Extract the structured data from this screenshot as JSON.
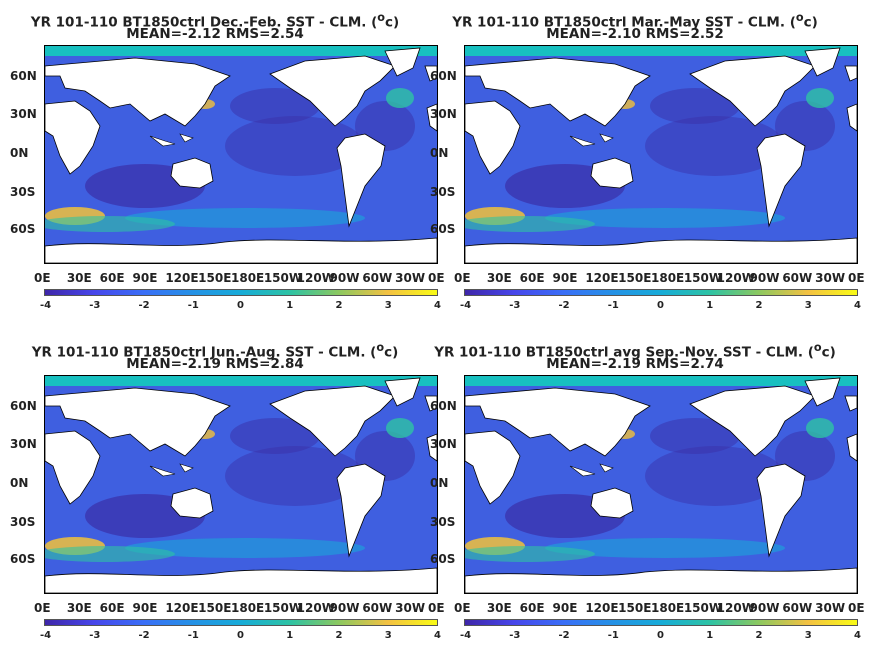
{
  "panels": [
    {
      "title_line1": "YR 101-110 BT1850ctrl  Dec.-Feb. SST - CLM. (",
      "title_sup": "o",
      "title_unit": "c)",
      "title_line2": "MEAN=-2.12   RMS=2.54"
    },
    {
      "title_line1": "YR 101-110 BT1850ctrl Mar.-May SST - CLM. (",
      "title_sup": "o",
      "title_unit": "c)",
      "title_line2": "MEAN=-2.10   RMS=2.52"
    },
    {
      "title_line1": "YR 101-110 BT1850ctrl Jun.-Aug. SST - CLM. (",
      "title_sup": "o",
      "title_unit": "c)",
      "title_line2": "MEAN=-2.19   RMS=2.84"
    },
    {
      "title_line1": "YR 101-110 BT1850ctrl avg Sep.-Nov. SST - CLM. (",
      "title_sup": "o",
      "title_unit": "c)",
      "title_line2": "MEAN=-2.19   RMS=2.74"
    }
  ],
  "lat_ticks": [
    "60N",
    "30N",
    "0N",
    "30S",
    "60S"
  ],
  "lon_ticks": [
    "0E",
    "30E",
    "60E",
    "90E",
    "120E",
    "150E",
    "180E",
    "150W",
    "120W",
    "90W",
    "60W",
    "30W",
    "0E"
  ],
  "colorbar_ticks": [
    "-4",
    "-3",
    "-2",
    "-1",
    "0",
    "1",
    "2",
    "3",
    "4"
  ],
  "colors": {
    "ocean_base": "#3f5fe0",
    "land": "#ffffff",
    "sea_ice": "#18c0c0",
    "warm": "#f2c23a",
    "deep": "#3a2fa8"
  }
}
